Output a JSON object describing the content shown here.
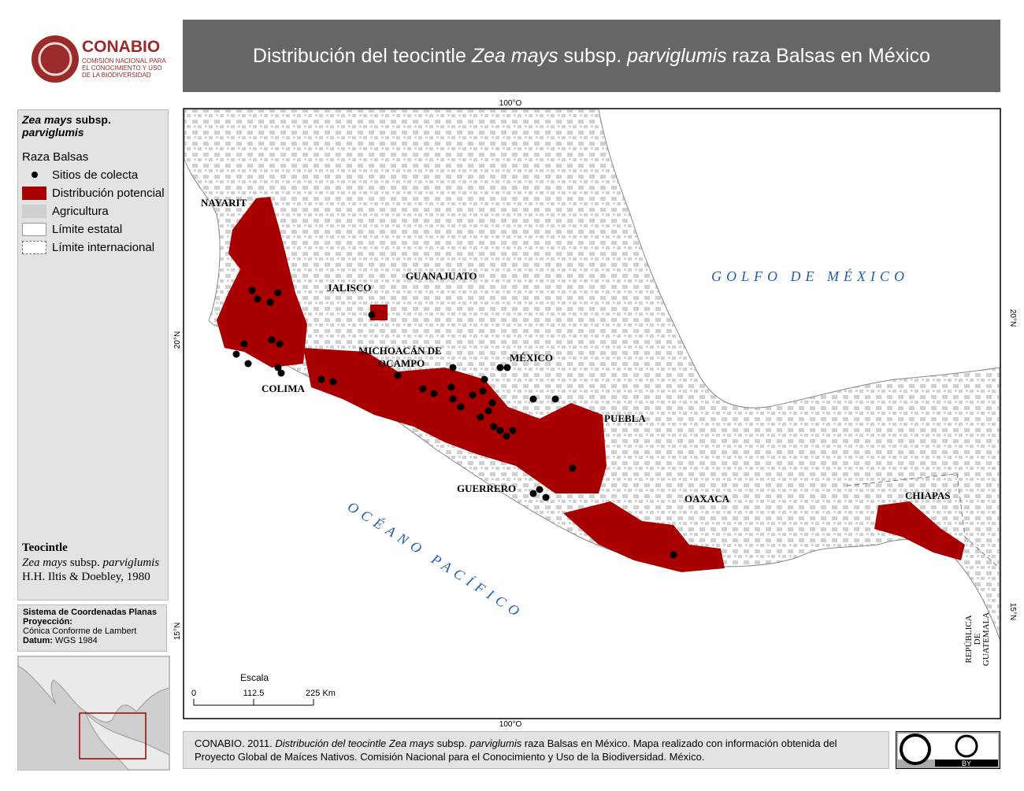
{
  "logo": {
    "name": "CONABIO",
    "lines": [
      "COMISIÓN NACIONAL PARA",
      "EL CONOCIMIENTO Y USO",
      "DE LA BIODIVERSIDAD"
    ]
  },
  "title": [
    "Distribución del teocintle ",
    "Zea mays",
    " subsp. ",
    "parviglumis",
    " raza Balsas en México"
  ],
  "legend": {
    "species": [
      "Zea mays",
      " subsp. ",
      "parviglumis"
    ],
    "group": "Raza Balsas",
    "items": [
      "Sitios de colecta",
      "Distribución potencial",
      "Agricultura",
      "Límite estatal",
      "Límite internacional"
    ]
  },
  "taxon": {
    "heading": "Teocintle",
    "name": [
      "Zea mays",
      " subsp. ",
      "parviglumis"
    ],
    "authority": "H.H. Iltis & Doebley, 1980"
  },
  "projection": {
    "system": "Sistema de Coordenadas Planas",
    "projection_label": "Proyección:",
    "projection": "Cónica Conforme de Lambert",
    "datum_label": "Datum:",
    "datum": "WGS 1984"
  },
  "map": {
    "states": [
      "NAYARIT",
      "JALISCO",
      "GUANAJUATO",
      "MICHOACÁN DE",
      "OCAMPO",
      "MÉXICO",
      "COLIMA",
      "PUEBLA",
      "GUERRERO",
      "OAXACA",
      "CHIAPAS"
    ],
    "gulf": "GOLFO DE MÉXICO",
    "ocean": "OCÉANO PACÍFICO",
    "guatemala": [
      "REPÚBLICA",
      "DE",
      "GUATEMALA"
    ],
    "graticule": {
      "lon": "100°O",
      "lat_20": "20°N",
      "lat_15": "15°N"
    },
    "scale": {
      "title": "Escala",
      "ticks": [
        "0",
        "112.5",
        "225 Km"
      ]
    }
  },
  "citation": [
    "CONABIO. 2011. ",
    "Distribución del teocintle Zea mays",
    " subsp. ",
    "parviglumis",
    " raza Balsas en México. Mapa realizado con información obtenida del Proyecto Global de Maíces Nativos. Comisión Nacional para el Conocimiento y Uso de la Biodiversidad. México."
  ],
  "license": "BY"
}
